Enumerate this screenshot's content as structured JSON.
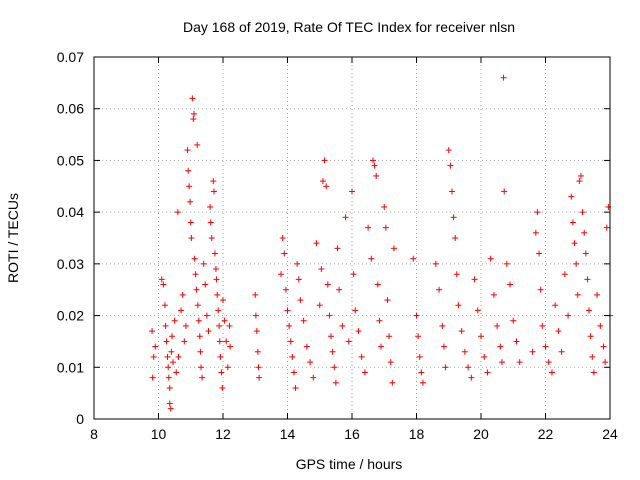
{
  "chart_data": {
    "type": "scatter",
    "title": "Day 168 of 2019, Rate Of TEC Index for receiver nlsn",
    "xlabel": "GPS time / hours",
    "ylabel": "ROTI / TECUs",
    "xlim": [
      8,
      24
    ],
    "ylim": [
      0,
      0.07
    ],
    "xticks": [
      8,
      10,
      12,
      14,
      16,
      18,
      20,
      22,
      24
    ],
    "xtick_labels": [
      "8",
      "10",
      "12",
      "14",
      "16",
      "18",
      "20",
      "22",
      "24"
    ],
    "yticks": [
      0,
      0.01,
      0.02,
      0.03,
      0.04,
      0.05,
      0.06,
      0.07
    ],
    "ytick_labels": [
      "0",
      "0.01",
      "0.02",
      "0.03",
      "0.04",
      "0.05",
      "0.06",
      "0.07"
    ],
    "grid": true,
    "marker": "+",
    "color": "#ff0000",
    "series": [
      {
        "name": "ROTI",
        "points": [
          [
            9.8,
            0.017
          ],
          [
            9.82,
            0.008
          ],
          [
            9.85,
            0.012
          ],
          [
            9.9,
            0.014
          ],
          [
            10.1,
            0.027
          ],
          [
            10.15,
            0.026
          ],
          [
            10.2,
            0.022
          ],
          [
            10.22,
            0.018
          ],
          [
            10.25,
            0.015
          ],
          [
            10.28,
            0.012
          ],
          [
            10.3,
            0.01
          ],
          [
            10.32,
            0.008
          ],
          [
            10.35,
            0.006
          ],
          [
            10.35,
            0.003
          ],
          [
            10.38,
            0.002
          ],
          [
            10.4,
            0.013
          ],
          [
            10.42,
            0.016
          ],
          [
            10.45,
            0.011
          ],
          [
            10.5,
            0.019
          ],
          [
            10.55,
            0.009
          ],
          [
            10.6,
            0.04
          ],
          [
            10.62,
            0.012
          ],
          [
            10.7,
            0.021
          ],
          [
            10.75,
            0.024
          ],
          [
            10.8,
            0.015
          ],
          [
            10.85,
            0.018
          ],
          [
            10.9,
            0.052
          ],
          [
            10.92,
            0.048
          ],
          [
            10.95,
            0.045
          ],
          [
            10.98,
            0.042
          ],
          [
            11.0,
            0.038
          ],
          [
            11.02,
            0.035
          ],
          [
            11.05,
            0.062
          ],
          [
            11.08,
            0.058
          ],
          [
            11.1,
            0.059
          ],
          [
            11.12,
            0.031
          ],
          [
            11.15,
            0.028
          ],
          [
            11.18,
            0.025
          ],
          [
            11.2,
            0.053
          ],
          [
            11.22,
            0.022
          ],
          [
            11.25,
            0.019
          ],
          [
            11.28,
            0.016
          ],
          [
            11.3,
            0.013
          ],
          [
            11.32,
            0.01
          ],
          [
            11.35,
            0.008
          ],
          [
            11.4,
            0.03
          ],
          [
            11.45,
            0.026
          ],
          [
            11.5,
            0.02
          ],
          [
            11.55,
            0.017
          ],
          [
            11.6,
            0.041
          ],
          [
            11.62,
            0.038
          ],
          [
            11.65,
            0.035
          ],
          [
            11.7,
            0.046
          ],
          [
            11.72,
            0.044
          ],
          [
            11.75,
            0.032
          ],
          [
            11.78,
            0.029
          ],
          [
            11.8,
            0.027
          ],
          [
            11.82,
            0.024
          ],
          [
            11.85,
            0.021
          ],
          [
            11.88,
            0.018
          ],
          [
            11.9,
            0.015
          ],
          [
            11.92,
            0.012
          ],
          [
            11.95,
            0.009
          ],
          [
            11.98,
            0.006
          ],
          [
            12.0,
            0.023
          ],
          [
            12.05,
            0.019
          ],
          [
            12.1,
            0.015
          ],
          [
            12.15,
            0.01
          ],
          [
            12.2,
            0.018
          ],
          [
            12.22,
            0.014
          ],
          [
            13.0,
            0.024
          ],
          [
            13.02,
            0.02
          ],
          [
            13.05,
            0.017
          ],
          [
            13.08,
            0.013
          ],
          [
            13.1,
            0.01
          ],
          [
            13.12,
            0.008
          ],
          [
            13.8,
            0.028
          ],
          [
            13.85,
            0.035
          ],
          [
            13.9,
            0.032
          ],
          [
            13.95,
            0.025
          ],
          [
            14.0,
            0.021
          ],
          [
            14.05,
            0.018
          ],
          [
            14.1,
            0.015
          ],
          [
            14.15,
            0.012
          ],
          [
            14.2,
            0.009
          ],
          [
            14.25,
            0.006
          ],
          [
            14.3,
            0.03
          ],
          [
            14.35,
            0.027
          ],
          [
            14.4,
            0.023
          ],
          [
            14.5,
            0.019
          ],
          [
            14.6,
            0.014
          ],
          [
            14.7,
            0.011
          ],
          [
            14.8,
            0.008
          ],
          [
            14.9,
            0.034
          ],
          [
            15.0,
            0.022
          ],
          [
            15.05,
            0.029
          ],
          [
            15.1,
            0.046
          ],
          [
            15.15,
            0.05
          ],
          [
            15.2,
            0.045
          ],
          [
            15.25,
            0.026
          ],
          [
            15.3,
            0.02
          ],
          [
            15.35,
            0.016
          ],
          [
            15.4,
            0.013
          ],
          [
            15.45,
            0.01
          ],
          [
            15.5,
            0.007
          ],
          [
            15.55,
            0.033
          ],
          [
            15.6,
            0.025
          ],
          [
            15.7,
            0.018
          ],
          [
            15.8,
            0.039
          ],
          [
            15.9,
            0.015
          ],
          [
            16.0,
            0.044
          ],
          [
            16.05,
            0.028
          ],
          [
            16.1,
            0.021
          ],
          [
            16.2,
            0.017
          ],
          [
            16.3,
            0.012
          ],
          [
            16.4,
            0.009
          ],
          [
            16.5,
            0.037
          ],
          [
            16.6,
            0.031
          ],
          [
            16.65,
            0.05
          ],
          [
            16.7,
            0.049
          ],
          [
            16.75,
            0.047
          ],
          [
            16.8,
            0.026
          ],
          [
            16.85,
            0.019
          ],
          [
            16.9,
            0.014
          ],
          [
            17.0,
            0.041
          ],
          [
            17.05,
            0.037
          ],
          [
            17.1,
            0.023
          ],
          [
            17.15,
            0.016
          ],
          [
            17.2,
            0.011
          ],
          [
            17.25,
            0.007
          ],
          [
            17.3,
            0.033
          ],
          [
            17.9,
            0.031
          ],
          [
            18.0,
            0.02
          ],
          [
            18.05,
            0.016
          ],
          [
            18.1,
            0.012
          ],
          [
            18.15,
            0.009
          ],
          [
            18.2,
            0.007
          ],
          [
            18.6,
            0.03
          ],
          [
            18.7,
            0.025
          ],
          [
            18.8,
            0.018
          ],
          [
            18.85,
            0.014
          ],
          [
            18.9,
            0.01
          ],
          [
            19.0,
            0.052
          ],
          [
            19.05,
            0.049
          ],
          [
            19.1,
            0.044
          ],
          [
            19.15,
            0.039
          ],
          [
            19.2,
            0.035
          ],
          [
            19.25,
            0.028
          ],
          [
            19.3,
            0.022
          ],
          [
            19.4,
            0.017
          ],
          [
            19.5,
            0.013
          ],
          [
            19.6,
            0.01
          ],
          [
            19.7,
            0.008
          ],
          [
            19.8,
            0.027
          ],
          [
            19.9,
            0.021
          ],
          [
            20.0,
            0.016
          ],
          [
            20.1,
            0.012
          ],
          [
            20.2,
            0.009
          ],
          [
            20.3,
            0.031
          ],
          [
            20.4,
            0.024
          ],
          [
            20.5,
            0.018
          ],
          [
            20.6,
            0.014
          ],
          [
            20.65,
            0.011
          ],
          [
            20.7,
            0.066
          ],
          [
            20.72,
            0.044
          ],
          [
            20.8,
            0.03
          ],
          [
            20.9,
            0.026
          ],
          [
            21.0,
            0.019
          ],
          [
            21.1,
            0.015
          ],
          [
            21.2,
            0.011
          ],
          [
            21.6,
            0.013
          ],
          [
            21.7,
            0.036
          ],
          [
            21.75,
            0.04
          ],
          [
            21.8,
            0.032
          ],
          [
            21.85,
            0.025
          ],
          [
            21.9,
            0.018
          ],
          [
            22.0,
            0.014
          ],
          [
            22.1,
            0.011
          ],
          [
            22.2,
            0.009
          ],
          [
            22.3,
            0.022
          ],
          [
            22.4,
            0.017
          ],
          [
            22.5,
            0.013
          ],
          [
            22.6,
            0.028
          ],
          [
            22.7,
            0.02
          ],
          [
            22.8,
            0.043
          ],
          [
            22.85,
            0.038
          ],
          [
            22.9,
            0.034
          ],
          [
            22.95,
            0.03
          ],
          [
            23.0,
            0.024
          ],
          [
            23.05,
            0.046
          ],
          [
            23.1,
            0.047
          ],
          [
            23.15,
            0.04
          ],
          [
            23.2,
            0.036
          ],
          [
            23.25,
            0.032
          ],
          [
            23.3,
            0.027
          ],
          [
            23.35,
            0.021
          ],
          [
            23.4,
            0.016
          ],
          [
            23.45,
            0.012
          ],
          [
            23.5,
            0.009
          ],
          [
            23.6,
            0.024
          ],
          [
            23.7,
            0.018
          ],
          [
            23.8,
            0.014
          ],
          [
            23.85,
            0.011
          ],
          [
            23.9,
            0.037
          ],
          [
            23.95,
            0.041
          ],
          [
            24.0,
            0.02
          ]
        ]
      }
    ]
  }
}
